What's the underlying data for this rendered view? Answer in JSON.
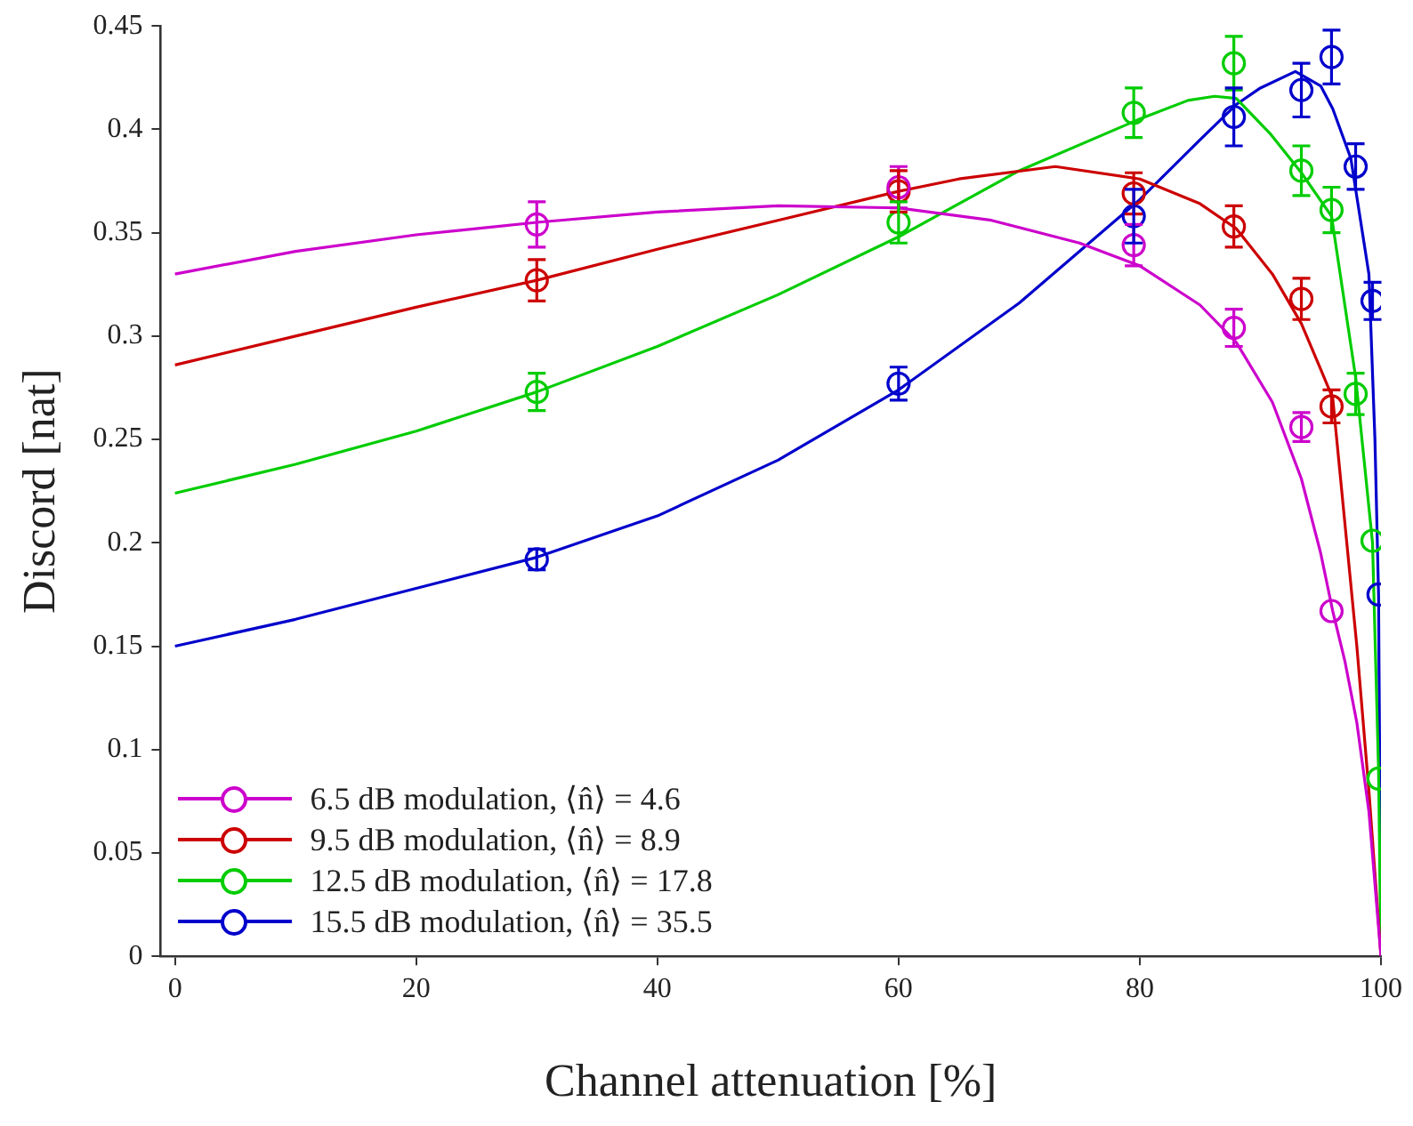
{
  "chart_data": {
    "type": "scatter",
    "xlabel": "Channel attenuation [%]",
    "ylabel": "Discord [nat]",
    "xlim": [
      -1.2,
      100
    ],
    "xticks": [
      0,
      20,
      40,
      60,
      80,
      100
    ],
    "ylim": [
      0,
      0.45
    ],
    "yticks": [
      0,
      0.05,
      0.1,
      0.15,
      0.2,
      0.25,
      0.3,
      0.35,
      0.4,
      0.45
    ],
    "grid": false,
    "legend": "bottom left",
    "marker": "circle",
    "series": [
      {
        "name": "6.5 dB modulation, ⟨n̂⟩ = 4.6",
        "type": "scatter",
        "color": "#cc00cc",
        "x": [
          30,
          60,
          79.5,
          87.8,
          93.4,
          95.9
        ],
        "values": [
          0.354,
          0.372,
          0.344,
          0.304,
          0.256,
          0.167
        ],
        "errors": [
          0.011,
          0.01,
          0.01,
          0.009,
          0.007,
          null
        ]
      },
      {
        "name": "9.5 dB modulation, ⟨n̂⟩ = 8.9",
        "type": "scatter",
        "color": "#cc0000",
        "x": [
          30,
          60,
          79.5,
          87.8,
          93.4,
          95.9
        ],
        "values": [
          0.327,
          0.37,
          0.369,
          0.353,
          0.318,
          0.266
        ],
        "errors": [
          0.01,
          0.01,
          0.01,
          0.01,
          0.01,
          0.008
        ]
      },
      {
        "name": "12.5 dB modulation, ⟨n̂⟩ = 17.8",
        "type": "scatter",
        "color": "#00cc00",
        "x": [
          30,
          60,
          79.5,
          87.8,
          93.4,
          95.9,
          97.9,
          99.3,
          99.8
        ],
        "values": [
          0.273,
          0.355,
          0.408,
          0.432,
          0.38,
          0.361,
          0.272,
          0.201,
          0.086
        ],
        "errors": [
          0.009,
          0.01,
          0.012,
          0.013,
          0.012,
          0.011,
          0.01,
          null,
          null
        ]
      },
      {
        "name": "15.5 dB modulation, ⟨n̂⟩ = 35.5",
        "type": "scatter",
        "color": "#0000cc",
        "x": [
          30,
          60,
          79.5,
          87.8,
          93.4,
          95.9,
          97.9,
          99.3,
          99.8
        ],
        "values": [
          0.192,
          0.277,
          0.358,
          0.406,
          0.419,
          0.435,
          0.382,
          0.317,
          0.175
        ],
        "errors": [
          0.005,
          0.008,
          0.013,
          0.014,
          0.013,
          0.013,
          0.011,
          0.009,
          null
        ]
      },
      {
        "type": "line",
        "marker": "none",
        "color": "#cc00cc",
        "x": [
          0,
          10,
          20,
          30,
          40,
          50,
          60,
          67.7,
          75,
          80,
          85,
          88,
          91,
          93.4,
          95,
          96,
          97,
          98,
          99,
          100
        ],
        "values": [
          0.33,
          0.341,
          0.349,
          0.355,
          0.36,
          0.363,
          0.362,
          0.356,
          0.345,
          0.334,
          0.315,
          0.297,
          0.268,
          0.231,
          0.195,
          0.167,
          0.143,
          0.113,
          0.07,
          0
        ]
      },
      {
        "type": "line",
        "marker": "none",
        "color": "#cc0000",
        "x": [
          0,
          10,
          20,
          30,
          40,
          50,
          60,
          65,
          73,
          80,
          85,
          88,
          91,
          93.4,
          95,
          96,
          97,
          98,
          99,
          100
        ],
        "values": [
          0.286,
          0.3,
          0.314,
          0.327,
          0.342,
          0.356,
          0.37,
          0.376,
          0.382,
          0.376,
          0.364,
          0.352,
          0.33,
          0.306,
          0.284,
          0.27,
          0.21,
          0.15,
          0.08,
          0
        ]
      },
      {
        "type": "line",
        "marker": "none",
        "color": "#00cc00",
        "x": [
          0,
          10,
          20,
          30,
          40,
          50,
          60,
          70,
          80,
          84,
          86.2,
          88,
          90.8,
          93.4,
          95.9,
          97.9,
          99.3,
          99.8,
          100
        ],
        "values": [
          0.224,
          0.238,
          0.254,
          0.273,
          0.295,
          0.32,
          0.348,
          0.38,
          0.405,
          0.414,
          0.416,
          0.415,
          0.398,
          0.379,
          0.358,
          0.28,
          0.2,
          0.09,
          0
        ]
      },
      {
        "type": "line",
        "marker": "none",
        "color": "#0000cc",
        "x": [
          0,
          10,
          20,
          30,
          40,
          50,
          60,
          70,
          80,
          85,
          88,
          90,
          92.9,
          95,
          96,
          97.5,
          99,
          99.5,
          99.8,
          100
        ],
        "values": [
          0.15,
          0.163,
          0.178,
          0.193,
          0.213,
          0.24,
          0.274,
          0.316,
          0.366,
          0.395,
          0.412,
          0.42,
          0.428,
          0.421,
          0.41,
          0.386,
          0.33,
          0.25,
          0.175,
          0
        ]
      }
    ]
  }
}
